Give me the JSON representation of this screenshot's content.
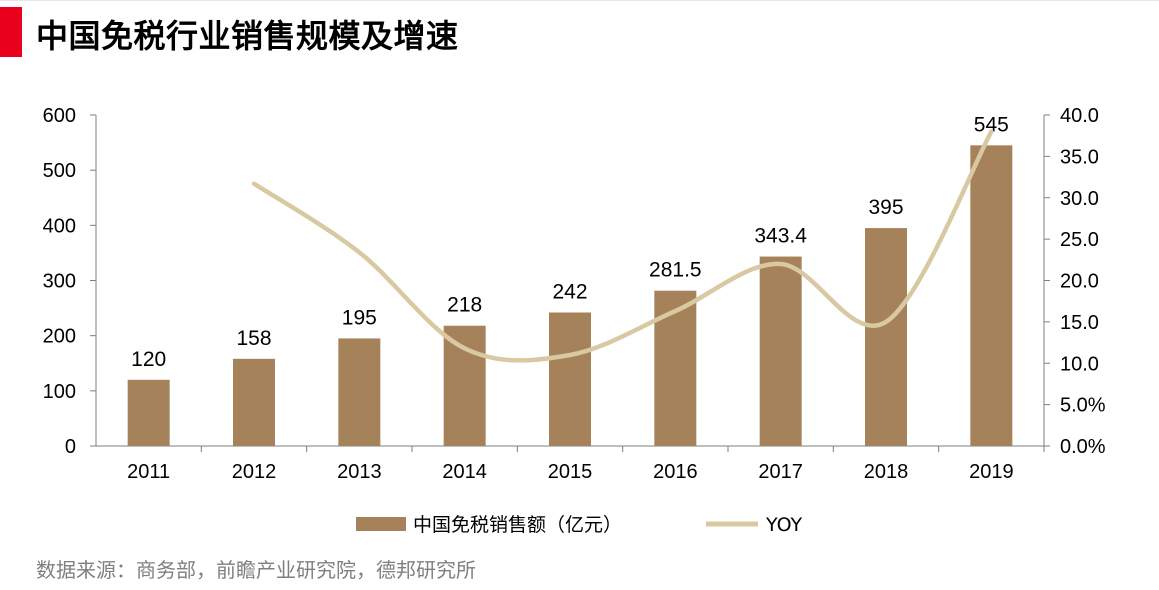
{
  "header": {
    "title": "中国免税行业销售规模及增速"
  },
  "footer": {
    "source": "数据来源：商务部，前瞻产业研究院，德邦研究所"
  },
  "chart_data": {
    "type": "bar",
    "categories": [
      "2011",
      "2012",
      "2013",
      "2014",
      "2015",
      "2016",
      "2017",
      "2018",
      "2019"
    ],
    "series": [
      {
        "name": "中国免税销售额（亿元）",
        "type": "bar",
        "axis": "left",
        "color": "#a5825a",
        "values": [
          120,
          158,
          195,
          218,
          242,
          281.5,
          343.4,
          395,
          545
        ],
        "labels": [
          "120",
          "158",
          "195",
          "218",
          "242",
          "281.5",
          "343.4",
          "395",
          "545"
        ]
      },
      {
        "name": "YOY",
        "type": "line",
        "axis": "right",
        "color": "#d9c9a3",
        "values": [
          null,
          31.7,
          23.4,
          11.8,
          11.0,
          16.3,
          22.0,
          15.0,
          38.0
        ]
      }
    ],
    "y_left": {
      "ylim": [
        0,
        600
      ],
      "ticks": [
        "0",
        "100",
        "200",
        "300",
        "400",
        "500",
        "600"
      ]
    },
    "y_right": {
      "ylim": [
        0,
        40
      ],
      "ticks": [
        "0.0%",
        "5.0%",
        "10.0",
        "15.0",
        "20.0",
        "25.0",
        "30.0",
        "35.0",
        "40.0"
      ]
    },
    "legend_position": "bottom",
    "grid": false
  }
}
